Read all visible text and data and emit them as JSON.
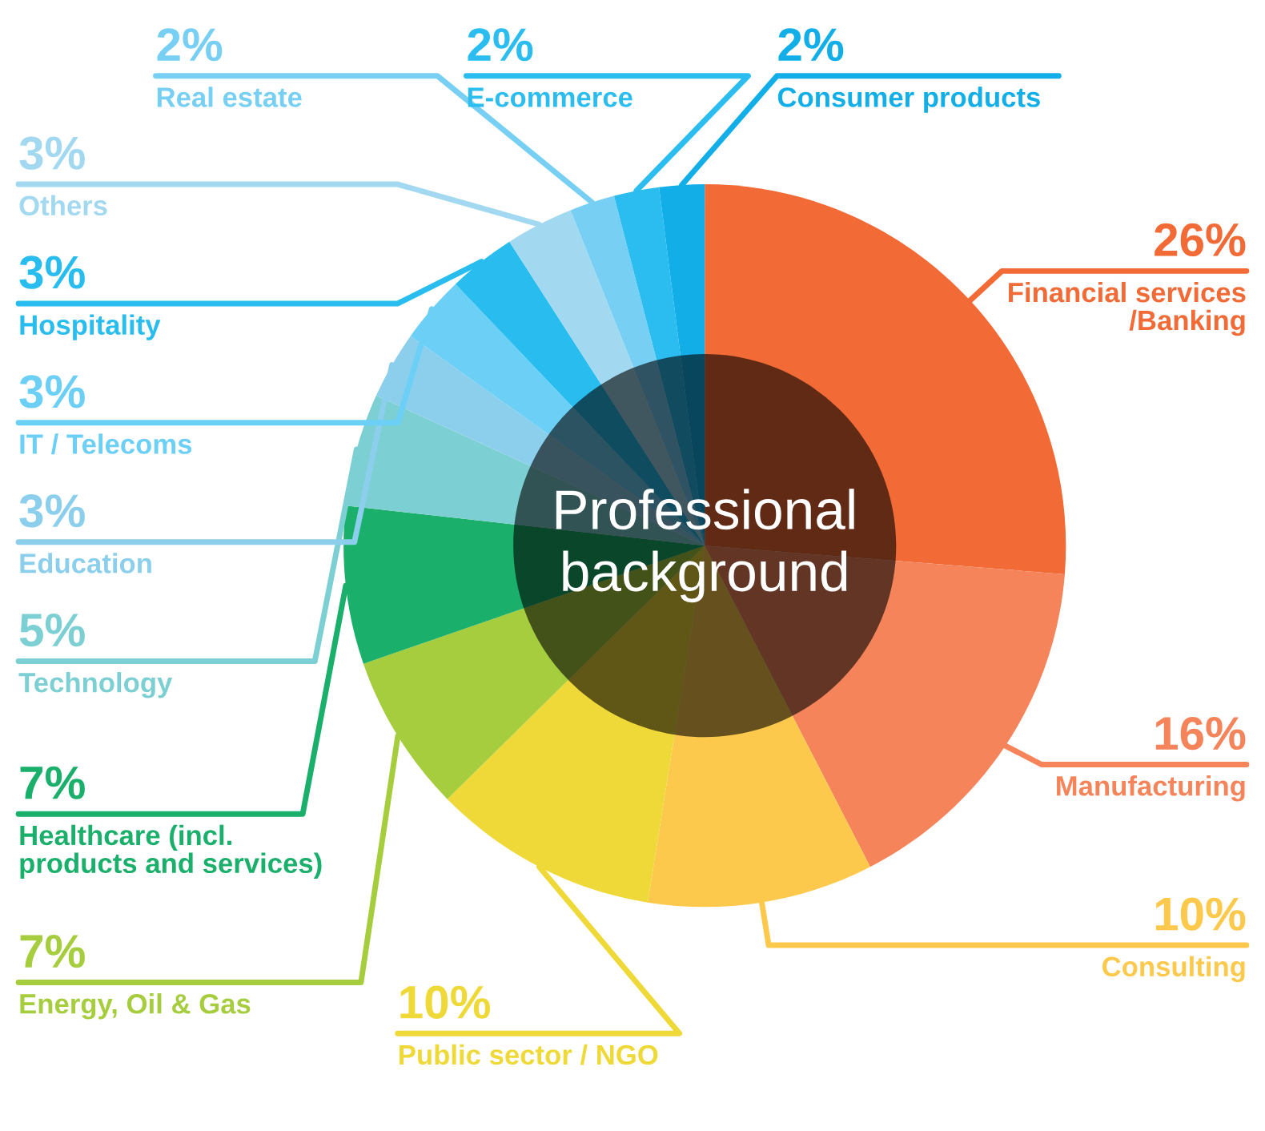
{
  "chart_data": {
    "type": "donut",
    "title": "Professional\nbackground",
    "categories": [
      "Financial services\n/Banking",
      "Manufacturing",
      "Consulting",
      "Public sector / NGO",
      "Energy, Oil & Gas",
      "Healthcare (incl.\nproducts and services)",
      "Technology",
      "Education",
      "IT / Telecoms",
      "Hospitality",
      "Others",
      "Real estate",
      "E-commerce",
      "Consumer products"
    ],
    "values": [
      26,
      16,
      10,
      10,
      7,
      7,
      5,
      3,
      3,
      3,
      3,
      2,
      2,
      2
    ],
    "value_labels": [
      "26%",
      "16%",
      "10%",
      "10%",
      "7%",
      "7%",
      "5%",
      "3%",
      "3%",
      "3%",
      "3%",
      "2%",
      "2%",
      "2%"
    ],
    "colors": [
      "#f26a35",
      "#f5845a",
      "#fdc94c",
      "#efd938",
      "#a6cd3e",
      "#1aaf6a",
      "#7ccfd3",
      "#8ccfec",
      "#6ccff6",
      "#28bdee",
      "#a2d9f0",
      "#77d0f4",
      "#2bbcf0",
      "#12aee8"
    ]
  }
}
